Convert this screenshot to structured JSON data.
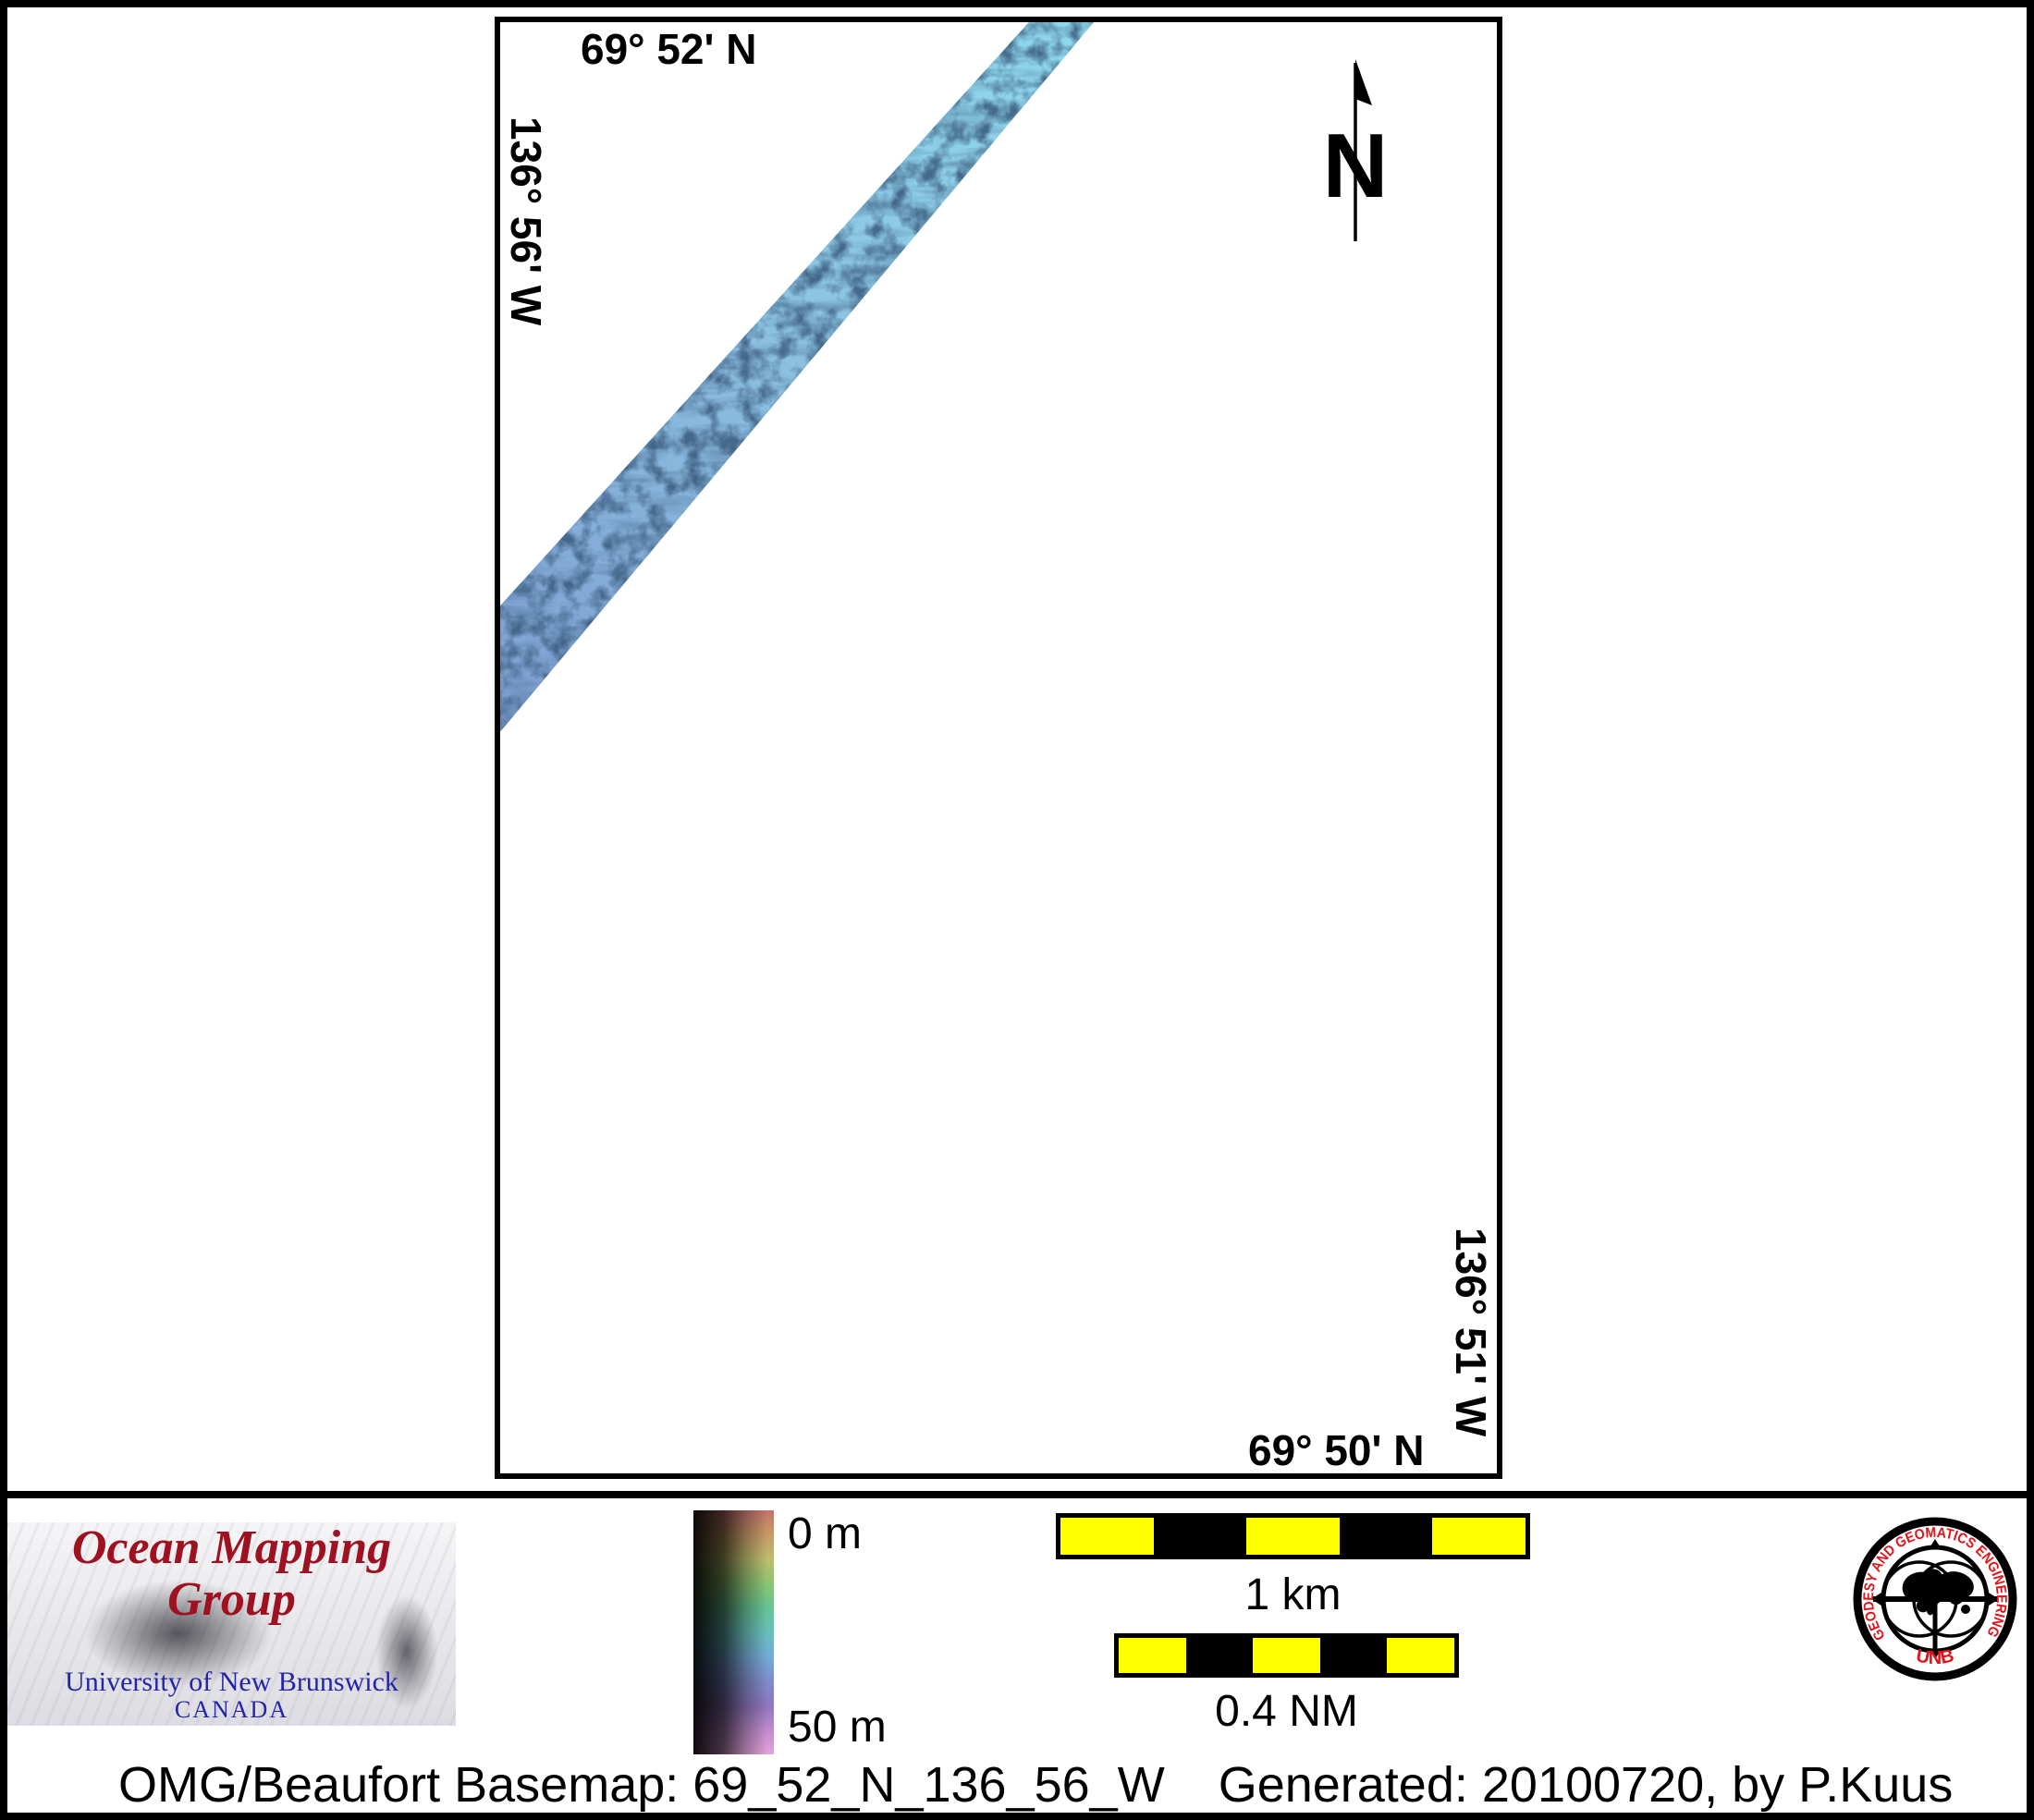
{
  "map": {
    "top_coordinate": "69° 52' N",
    "left_coordinate": "136° 56' W",
    "right_coordinate": "136° 51' W",
    "bottom_coordinate": "69° 50' N",
    "north_arrow_label": "N"
  },
  "colorbar": {
    "top_label": "0 m",
    "bottom_label": "50 m",
    "gradient_stops_top_to_bottom": [
      "#c4736e",
      "#c79a66",
      "#bdbd6d",
      "#8cc573",
      "#66c493",
      "#68c0bd",
      "#74aad6",
      "#7f8cca",
      "#8f76bd",
      "#c08ccc",
      "#e3a3da"
    ]
  },
  "scalebars": [
    {
      "label": "1 km",
      "segments": 5
    },
    {
      "label": "0.4 NM",
      "segments": 5
    }
  ],
  "branding": {
    "omg_logo": {
      "title": "Ocean Mapping Group",
      "institution": "University of New Brunswick",
      "country": "CANADA",
      "title_color": "#9e1120",
      "institution_color": "#2424a8"
    },
    "unb_seal": {
      "ring_text": "GEODESY AND GEOMATICS ENGINEERING",
      "acronym": "UNB",
      "text_color": "#e41218"
    }
  },
  "footer": {
    "basemap_caption": "OMG/Beaufort Basemap: 69_52_N_136_56_W",
    "generated_caption": "Generated: 20100720, by P.Kuus"
  },
  "colors": {
    "scalebar_yellow": "#ffff00",
    "swath_shallow": "#8fd9ec",
    "swath_mid": "#8cc2e2",
    "swath_deep": "#7f9fd2",
    "frame_black": "#000000"
  }
}
